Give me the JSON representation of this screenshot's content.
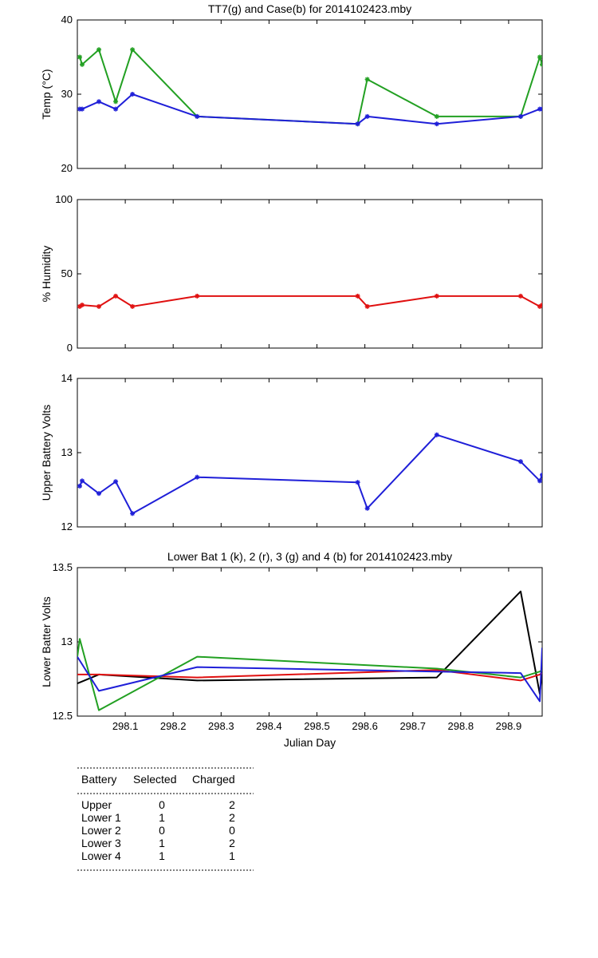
{
  "chart_data": [
    {
      "id": "temp",
      "type": "line",
      "title": "TT7(g) and Case(b) for 2014102423.mby",
      "xlabel": "",
      "ylabel": "Temp (°C)",
      "xlim": [
        298.0,
        298.97
      ],
      "ylim": [
        20,
        40
      ],
      "yticks": [
        20,
        30,
        40
      ],
      "xticks": [],
      "series": [
        {
          "color": "#22a022",
          "marker": true,
          "x": [
            298.005,
            298.01,
            298.045,
            298.08,
            298.115,
            298.25,
            298.585,
            298.605,
            298.75,
            298.925,
            298.965,
            298.97
          ],
          "y": [
            35,
            34,
            36,
            29,
            36,
            27,
            26,
            32,
            27,
            27,
            35,
            34
          ]
        },
        {
          "color": "#1f1fd8",
          "marker": true,
          "x": [
            298.005,
            298.01,
            298.045,
            298.08,
            298.115,
            298.25,
            298.585,
            298.605,
            298.75,
            298.925,
            298.965,
            298.97
          ],
          "y": [
            28,
            28,
            29,
            28,
            30,
            27,
            26,
            27,
            26,
            27,
            28,
            28
          ]
        }
      ]
    },
    {
      "id": "humidity",
      "type": "line",
      "title": "",
      "xlabel": "",
      "ylabel": "% Humidity",
      "xlim": [
        298.0,
        298.97
      ],
      "ylim": [
        0,
        100
      ],
      "yticks": [
        0,
        50,
        100
      ],
      "xticks": [],
      "series": [
        {
          "color": "#e01010",
          "marker": true,
          "x": [
            298.005,
            298.01,
            298.045,
            298.08,
            298.115,
            298.25,
            298.585,
            298.605,
            298.75,
            298.925,
            298.965,
            298.97
          ],
          "y": [
            28,
            29,
            28,
            35,
            28,
            35,
            35,
            28,
            35,
            35,
            28,
            29
          ]
        }
      ]
    },
    {
      "id": "upper-battery",
      "type": "line",
      "title": "",
      "xlabel": "",
      "ylabel": "Upper Battery Volts",
      "xlim": [
        298.0,
        298.97
      ],
      "ylim": [
        12,
        14
      ],
      "yticks": [
        12,
        13,
        14
      ],
      "xticks": [],
      "series": [
        {
          "color": "#1f1fd8",
          "marker": true,
          "x": [
            298.005,
            298.01,
            298.045,
            298.08,
            298.115,
            298.25,
            298.585,
            298.605,
            298.75,
            298.925,
            298.965,
            298.97
          ],
          "y": [
            12.55,
            12.62,
            12.45,
            12.61,
            12.18,
            12.67,
            12.6,
            12.25,
            13.24,
            12.88,
            12.62,
            12.7
          ]
        }
      ]
    },
    {
      "id": "lower-battery",
      "type": "line",
      "title": "Lower Bat 1 (k), 2 (r), 3 (g) and 4 (b) for 2014102423.mby",
      "xlabel": "Julian Day",
      "ylabel": "Lower Batter Volts",
      "xlim": [
        298.0,
        298.97
      ],
      "ylim": [
        12.5,
        13.5
      ],
      "yticks": [
        12.5,
        13,
        13.5
      ],
      "xticks": [
        298.1,
        298.2,
        298.3,
        298.4,
        298.5,
        298.6,
        298.7,
        298.8,
        298.9
      ],
      "series": [
        {
          "color": "#000000",
          "marker": false,
          "x": [
            298.0,
            298.045,
            298.25,
            298.75,
            298.925,
            298.965,
            298.97
          ],
          "y": [
            12.72,
            12.78,
            12.74,
            12.76,
            13.34,
            12.65,
            12.8
          ]
        },
        {
          "color": "#e01010",
          "marker": false,
          "x": [
            298.0,
            298.045,
            298.25,
            298.75,
            298.925,
            298.965,
            298.97
          ],
          "y": [
            12.78,
            12.78,
            12.76,
            12.81,
            12.74,
            12.78,
            12.79
          ]
        },
        {
          "color": "#22a022",
          "marker": false,
          "x": [
            298.0,
            298.005,
            298.045,
            298.25,
            298.75,
            298.925,
            298.965,
            298.97
          ],
          "y": [
            12.9,
            13.02,
            12.54,
            12.9,
            12.82,
            12.76,
            12.8,
            12.81
          ]
        },
        {
          "color": "#1f1fd8",
          "marker": false,
          "x": [
            298.0,
            298.045,
            298.25,
            298.75,
            298.925,
            298.965,
            298.97
          ],
          "y": [
            12.9,
            12.67,
            12.83,
            12.8,
            12.79,
            12.6,
            12.96
          ]
        }
      ]
    }
  ],
  "battery_table": {
    "headers": [
      "Battery",
      "Selected",
      "Charged"
    ],
    "rows": [
      [
        "Upper",
        "0",
        "2"
      ],
      [
        "Lower 1",
        "1",
        "2"
      ],
      [
        "Lower 2",
        "0",
        "0"
      ],
      [
        "Lower 3",
        "1",
        "2"
      ],
      [
        "Lower 4",
        "1",
        "1"
      ]
    ]
  }
}
